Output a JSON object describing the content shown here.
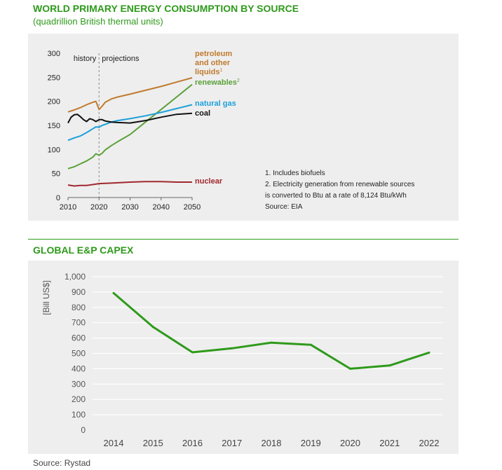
{
  "chart_data": [
    {
      "type": "line",
      "title": "WORLD PRIMARY ENERGY CONSUMPTION BY SOURCE",
      "subtitle": "(quadrillion British thermal units)",
      "xlim": [
        2010,
        2050
      ],
      "ylim": [
        0,
        300
      ],
      "x_ticks": [
        2010,
        2020,
        2030,
        2040,
        2050
      ],
      "y_ticks": [
        0,
        50,
        100,
        150,
        200,
        250,
        300
      ],
      "annotations": {
        "history": "history",
        "projections": "projections",
        "divider_year": 2020
      },
      "series": [
        {
          "name": "petroleum and other liquids",
          "label_lines": [
            "petroleum",
            "and other",
            "liquids"
          ],
          "footnote_mark": "1",
          "color": "#c07a2e",
          "x": [
            2010,
            2012,
            2014,
            2016,
            2018,
            2019,
            2020,
            2021,
            2022,
            2024,
            2026,
            2030,
            2035,
            2040,
            2045,
            2050
          ],
          "values": [
            178,
            182,
            187,
            193,
            198,
            200,
            183,
            190,
            198,
            205,
            209,
            215,
            223,
            231,
            240,
            249
          ]
        },
        {
          "name": "renewables",
          "footnote_mark": "2",
          "color": "#5aa13a",
          "x": [
            2010,
            2012,
            2014,
            2016,
            2018,
            2019,
            2020,
            2021,
            2022,
            2024,
            2026,
            2030,
            2035,
            2040,
            2045,
            2050
          ],
          "values": [
            60,
            64,
            70,
            76,
            84,
            91,
            88,
            92,
            99,
            108,
            116,
            131,
            157,
            183,
            209,
            235
          ]
        },
        {
          "name": "natural gas",
          "color": "#1ca0d8",
          "x": [
            2010,
            2012,
            2014,
            2016,
            2018,
            2019,
            2020,
            2021,
            2022,
            2024,
            2026,
            2030,
            2035,
            2040,
            2045,
            2050
          ],
          "values": [
            119,
            124,
            128,
            135,
            143,
            147,
            146,
            150,
            152,
            157,
            160,
            164,
            170,
            177,
            185,
            193
          ]
        },
        {
          "name": "coal",
          "color": "#111111",
          "x": [
            2010,
            2011,
            2012,
            2013,
            2014,
            2015,
            2016,
            2017,
            2018,
            2019,
            2020,
            2021,
            2022,
            2024,
            2026,
            2030,
            2035,
            2040,
            2045,
            2050
          ],
          "values": [
            155,
            167,
            172,
            173,
            168,
            162,
            158,
            164,
            162,
            158,
            162,
            162,
            159,
            157,
            156,
            155,
            160,
            167,
            173,
            175
          ]
        },
        {
          "name": "nuclear",
          "color": "#a0282f",
          "x": [
            2010,
            2012,
            2014,
            2016,
            2018,
            2020,
            2024,
            2030,
            2035,
            2040,
            2045,
            2050
          ],
          "values": [
            26,
            24,
            25,
            25,
            27,
            29,
            30,
            32,
            33,
            33,
            32,
            32
          ]
        }
      ],
      "footnotes": [
        "1. Includes biofuels",
        "2. Electricity generation from renewable sources",
        "is converted to Btu at a rate of 8,124 Btu/kWh",
        "Source: EIA"
      ]
    },
    {
      "type": "line",
      "title": "GLOBAL E&P CAPEX",
      "ylabel": "[Bill US$]",
      "ylim": [
        0,
        1000
      ],
      "y_ticks": [
        "0",
        "100",
        "200",
        "300",
        "400",
        "500",
        "600",
        "700",
        "800",
        "900",
        "1,000"
      ],
      "categories": [
        "2014",
        "2015",
        "2016",
        "2017",
        "2018",
        "2019",
        "2020",
        "2021",
        "2022"
      ],
      "series": [
        {
          "name": "E&P CAPEX",
          "color": "#2e9a1b",
          "values": [
            893,
            672,
            507,
            533,
            570,
            556,
            400,
            421,
            505
          ]
        }
      ],
      "source": "Source: Rystad"
    }
  ]
}
